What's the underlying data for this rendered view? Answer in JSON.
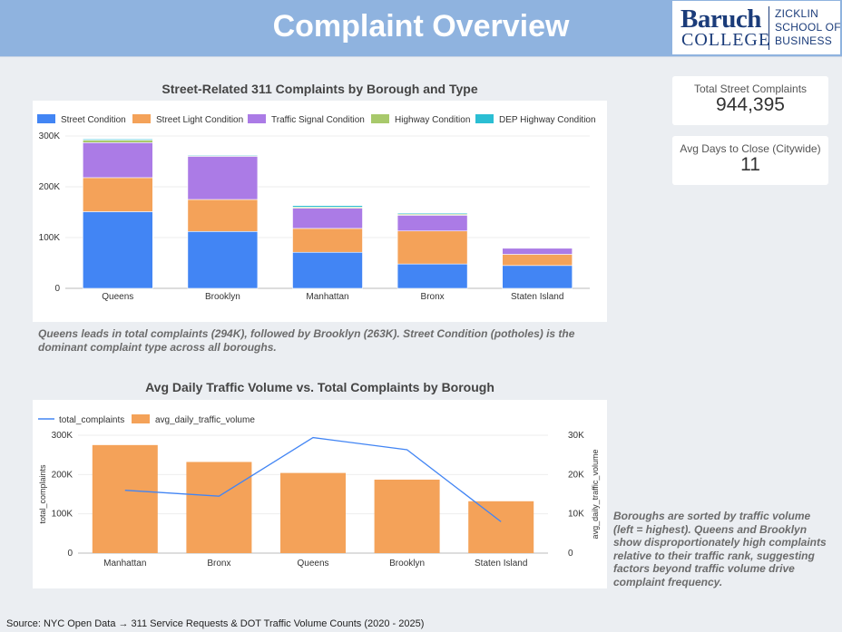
{
  "header": {
    "title": "Complaint Overview",
    "logo": {
      "name": "Baruch",
      "sub": "COLLEGE",
      "school_lines": [
        "ZICKLIN",
        "SCHOOL OF",
        "BUSINESS"
      ]
    }
  },
  "kpis": [
    {
      "label": "Total Street Complaints",
      "value": "944,395"
    },
    {
      "label": "Avg Days to Close (Citywide)",
      "value": "11"
    }
  ],
  "notes": {
    "chart1": "Queens leads in total complaints (294K), followed by Brooklyn (263K). Street Condition (potholes) is the dominant complaint type across all boroughs.",
    "chart2": "Boroughs are sorted by traffic volume (left = highest). Queens and Brooklyn show disproportionately high complaints relative to their traffic rank, suggesting factors beyond traffic volume drive complaint frequency."
  },
  "source": "Source: NYC Open Data → 311 Service Requests & DOT Traffic Volume Counts (2020 - 2025)",
  "chart_data": [
    {
      "type": "bar",
      "stacked": true,
      "title": "Street-Related 311 Complaints by Borough and Type",
      "categories": [
        "Queens",
        "Brooklyn",
        "Manhattan",
        "Bronx",
        "Staten Island"
      ],
      "series": [
        {
          "name": "Street Condition",
          "color": "#4285f4",
          "values": [
            151000,
            112000,
            71000,
            48000,
            45000
          ]
        },
        {
          "name": "Street Light Condition",
          "color": "#f4a259",
          "values": [
            67000,
            63000,
            47000,
            65000,
            22000
          ]
        },
        {
          "name": "Traffic Signal Condition",
          "color": "#ab7be6",
          "values": [
            69000,
            85000,
            40000,
            31000,
            12000
          ]
        },
        {
          "name": "Highway Condition",
          "color": "#a8c96b",
          "values": [
            5000,
            1500,
            2000,
            2000,
            1000
          ]
        },
        {
          "name": "DEP Highway Condition",
          "color": "#2bbed3",
          "values": [
            2000,
            1500,
            3000,
            2000,
            1000
          ]
        }
      ],
      "yticks": [
        "0",
        "100K",
        "200K",
        "300K"
      ],
      "ylim": [
        0,
        300000
      ],
      "legend": "top",
      "grid": true
    },
    {
      "type": "bar",
      "title": "Avg Daily Traffic Volume vs. Total Complaints by Borough",
      "categories": [
        "Manhattan",
        "Bronx",
        "Queens",
        "Brooklyn",
        "Staten Island"
      ],
      "series": [
        {
          "name": "avg_daily_traffic_volume",
          "type": "bar",
          "axis": "right",
          "color": "#f4a259",
          "values": [
            27500,
            23200,
            20400,
            18700,
            13200
          ]
        },
        {
          "name": "total_complaints",
          "type": "line",
          "axis": "left",
          "color": "#4285f4",
          "values": [
            160000,
            145000,
            294000,
            263000,
            80000
          ]
        }
      ],
      "yleft": {
        "label": "total_complaints",
        "ticks": [
          "0",
          "100K",
          "200K",
          "300K"
        ],
        "lim": [
          0,
          300000
        ]
      },
      "yright": {
        "label": "avg_daily_traffic_volume",
        "ticks": [
          "0",
          "10K",
          "20K",
          "30K"
        ],
        "lim": [
          0,
          30000
        ]
      },
      "legend": "top-left",
      "grid": true
    }
  ]
}
